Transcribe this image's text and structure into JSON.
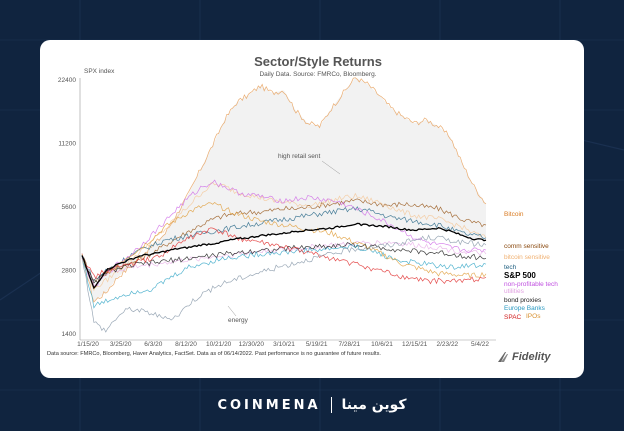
{
  "chart_data": {
    "type": "line",
    "title": "Sector/Style Returns",
    "subtitle": "Daily Data.  Source: FMRCo, Bloomberg.",
    "ylabel": "SPX index",
    "y_scale": "log",
    "ylim": [
      1400,
      22400
    ],
    "y_ticks": [
      "22400",
      "11200",
      "5600",
      "2800",
      "1400"
    ],
    "y_tick_values": [
      22400,
      11200,
      5600,
      2800,
      1400
    ],
    "x_ticks": [
      "1/15/20",
      "3/25/20",
      "6/3/20",
      "8/12/20",
      "10/21/20",
      "12/30/20",
      "3/10/21",
      "5/19/21",
      "7/28/21",
      "10/6/21",
      "12/15/21",
      "2/23/22",
      "5/4/22"
    ],
    "grid": false,
    "legend": "right, labels at line ends",
    "annotations": [
      "high retail sent",
      "energy"
    ],
    "series": [
      {
        "name": "Bitcoin",
        "color": "#e8a05a",
        "end_label_color": "#d97a20",
        "values": [
          3300,
          2000,
          2200,
          2600,
          2900,
          3300,
          3700,
          4200,
          5200,
          6500,
          8500,
          11000,
          14500,
          17500,
          19000,
          21000,
          19500,
          20000,
          16000,
          14000,
          13500,
          16500,
          19500,
          23000,
          21500,
          19000,
          16500,
          15000,
          14000,
          14500,
          13500,
          12000,
          9000,
          7000,
          5800
        ]
      },
      {
        "name": "comm sensitive",
        "color": "#9a5a1e",
        "end_label_color": "#8a4a10",
        "values": [
          3300,
          2500,
          2700,
          2900,
          3000,
          3200,
          3400,
          3700,
          4000,
          4300,
          4600,
          4900,
          5100,
          5200,
          5300,
          5300,
          5400,
          5500,
          5500,
          5600,
          5700,
          5800,
          5900,
          6000,
          5900,
          5800,
          5700,
          5800,
          5700,
          5600,
          5500,
          5200,
          4900,
          4700,
          4600
        ]
      },
      {
        "name": "bitcoin sensitive",
        "color": "#f5c89a",
        "end_label_color": "#f0b070",
        "values": [
          3300,
          2300,
          2500,
          2800,
          3100,
          3500,
          3900,
          4400,
          5000,
          5700,
          6500,
          7200,
          7000,
          6600,
          6400,
          6200,
          6000,
          5900,
          5800,
          5700,
          5800,
          6000,
          6200,
          6300,
          6100,
          5900,
          5600,
          5300,
          5100,
          5000,
          4900,
          4700,
          4500,
          4200,
          4000
        ]
      },
      {
        "name": "tech",
        "color": "#2a6a8a",
        "end_label_color": "#1f5f80",
        "values": [
          3300,
          2500,
          2800,
          3000,
          3300,
          3500,
          3700,
          3900,
          4000,
          4100,
          4200,
          4300,
          4400,
          4500,
          4600,
          4700,
          4800,
          4900,
          5000,
          5100,
          5200,
          5300,
          5400,
          5500,
          5400,
          5200,
          5000,
          4900,
          4800,
          4700,
          4600,
          4400,
          4200,
          4100,
          4000
        ]
      },
      {
        "name": "S&P 500",
        "color": "#000000",
        "end_label_color": "#000000",
        "values": [
          3300,
          2300,
          2800,
          3000,
          3150,
          3300,
          3350,
          3450,
          3550,
          3600,
          3700,
          3750,
          3850,
          3950,
          4000,
          4100,
          4150,
          4200,
          4300,
          4350,
          4400,
          4450,
          4550,
          4650,
          4600,
          4550,
          4500,
          4400,
          4350,
          4400,
          4450,
          4300,
          4100,
          3950,
          3900
        ]
      },
      {
        "name": "non-profitable tech",
        "color": "#d070e8",
        "end_label_color": "#c050e0",
        "values": [
          3300,
          2300,
          2700,
          3000,
          3300,
          3700,
          4200,
          4800,
          5500,
          6200,
          6900,
          7400,
          7000,
          6600,
          6400,
          6300,
          6100,
          6000,
          6100,
          6200,
          6100,
          6000,
          5800,
          5500,
          5200,
          4900,
          4600,
          4300,
          4000,
          3800,
          3700,
          3600,
          3500,
          3500,
          3500
        ]
      },
      {
        "name": "utilities",
        "color": "#e8b0e8",
        "end_label_color": "#e0a0e0",
        "values": [
          3300,
          2400,
          2700,
          2800,
          2900,
          2950,
          3000,
          3050,
          3100,
          3150,
          3200,
          3250,
          3300,
          3350,
          3400,
          3450,
          3500,
          3500,
          3550,
          3600,
          3650,
          3700,
          3700,
          3750,
          3800,
          3800,
          3800,
          3750,
          3700,
          3650,
          3600,
          3500,
          3450,
          3400,
          3350
        ]
      },
      {
        "name": "bond proxies",
        "color": "#1a1a1a",
        "end_label_color": "#1a1a1a",
        "values": [
          3300,
          2400,
          2750,
          2850,
          2950,
          3000,
          3050,
          3100,
          3150,
          3200,
          3250,
          3300,
          3350,
          3400,
          3450,
          3500,
          3500,
          3550,
          3600,
          3600,
          3650,
          3650,
          3700,
          3700,
          3650,
          3600,
          3550,
          3500,
          3450,
          3400,
          3400,
          3350,
          3300,
          3250,
          3200
        ]
      },
      {
        "name": "Europe Banks",
        "color": "#38a8c8",
        "end_label_color": "#2898c0",
        "values": [
          3300,
          1900,
          2000,
          2100,
          2200,
          2250,
          2300,
          2500,
          2700,
          2900,
          3000,
          3100,
          3200,
          3250,
          3300,
          3350,
          3400,
          3400,
          3450,
          3500,
          3500,
          3550,
          3600,
          3650,
          3500,
          3400,
          3200,
          3100,
          3050,
          3000,
          2950,
          2900,
          2950,
          2950,
          3000
        ]
      },
      {
        "name": "IPOs",
        "color": "#e0a040",
        "end_label_color": "#d89030",
        "values": [
          3300,
          2300,
          2700,
          3000,
          3300,
          3600,
          4000,
          4500,
          4900,
          5300,
          5600,
          5800,
          5500,
          5200,
          5000,
          4800,
          4700,
          4600,
          4500,
          4400,
          4300,
          4200,
          4000,
          3800,
          3600,
          3400,
          3200,
          3000,
          2900,
          2800,
          2700,
          2700,
          2650,
          2650,
          2700
        ]
      },
      {
        "name": "SPAC",
        "color": "#e03030",
        "end_label_color": "#d02020",
        "values": [
          3300,
          2600,
          2800,
          2900,
          3000,
          3100,
          3200,
          3400,
          3700,
          4000,
          4200,
          4400,
          4200,
          4000,
          3900,
          3800,
          3700,
          3600,
          3500,
          3400,
          3300,
          3200,
          3100,
          3000,
          2900,
          2800,
          2700,
          2600,
          2550,
          2500,
          2500,
          2500,
          2500,
          2550,
          2600
        ]
      },
      {
        "name": "energy",
        "color": "#8a9aaa",
        "end_label_color": "#555555",
        "values": [
          3300,
          1600,
          1450,
          1700,
          1850,
          1800,
          1750,
          1650,
          1700,
          1950,
          2150,
          2300,
          2450,
          2550,
          2650,
          2750,
          2850,
          2950,
          3050,
          3150,
          3250,
          3350,
          3450,
          3550,
          3600,
          3650,
          3700,
          3800,
          3900,
          4000,
          4000,
          3900,
          3800,
          3750,
          3700
        ]
      }
    ]
  },
  "footnote": "Data source: FMRCo, Bloomberg, Haver Analytics, FactSet. Data as of 06/14/2022. Past performance is no guarantee of future results.",
  "brand": {
    "name": "Fidelity",
    "sub": "INVESTMENTS"
  },
  "footer": {
    "latin": "COINMENA",
    "arabic": "كوين مينا"
  },
  "colors": {
    "background": "#10243f",
    "card": "#ffffff",
    "title": "#555555"
  }
}
